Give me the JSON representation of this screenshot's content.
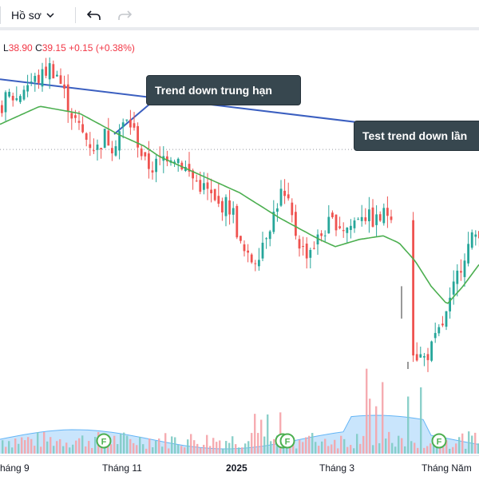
{
  "toolbar": {
    "profile_label": "Hồ sơ",
    "profile_chevron_icon": "chevron-down-icon",
    "undo_icon": "undo-icon",
    "redo_icon": "redo-icon"
  },
  "ohlc": {
    "low_label": "L",
    "low_value": "38.90",
    "close_label": "C",
    "close_value": "39.15",
    "change": "+0.15",
    "change_pct": "(+0.38%)"
  },
  "annotations": [
    {
      "text": "Trend down trung hạn"
    },
    {
      "text": "Test trend down lần"
    }
  ],
  "earnings_markers": [
    "F",
    "F",
    "F",
    "F"
  ],
  "xaxis_labels": [
    {
      "text": "háng 9",
      "bold": false
    },
    {
      "text": "Tháng 11",
      "bold": false
    },
    {
      "text": "2025",
      "bold": true
    },
    {
      "text": "Tháng 3",
      "bold": false
    },
    {
      "text": "Tháng Năm",
      "bold": false
    }
  ],
  "colors": {
    "up": "#26a69a",
    "down": "#ef5350",
    "ma": "#4caf50",
    "trendline": "#3b5fc0",
    "annotation_bg": "#37474f"
  },
  "chart_data": {
    "type": "line",
    "description_series": [
      {
        "name": "price",
        "x": [
          0,
          10,
          20,
          30,
          40,
          50,
          60,
          70,
          80,
          90,
          100,
          110,
          120,
          130,
          140,
          150,
          160,
          170,
          180,
          190,
          200,
          210,
          220,
          230,
          240,
          250,
          260,
          270,
          280,
          290,
          300,
          310,
          320,
          330,
          340,
          350,
          360,
          370,
          380,
          390,
          400,
          410,
          420,
          430,
          440,
          450,
          460,
          470,
          480,
          490,
          500,
          505,
          510,
          515,
          520,
          530,
          540,
          550,
          560,
          570,
          580,
          590,
          600
        ],
        "values": [
          41.2,
          41.5,
          41.4,
          41.8,
          41.9,
          42.0,
          42.3,
          42.1,
          41.5,
          40.9,
          40.5,
          40.2,
          40.0,
          40.4,
          40.1,
          40.6,
          40.8,
          40.3,
          39.6,
          39.5,
          39.7,
          39.9,
          39.8,
          39.5,
          39.2,
          39.0,
          38.8,
          38.4,
          38.5,
          38.3,
          37.3,
          36.9,
          37.0,
          37.6,
          38.1,
          38.8,
          38.4,
          37.6,
          37.1,
          37.3,
          37.6,
          37.9,
          38.0,
          37.8,
          37.9,
          38.3,
          38.1,
          38.0,
          38.2,
          38.3,
          37.4,
          36.0,
          35.0,
          34.5,
          34.3,
          34.2,
          34.5,
          35.0,
          35.5,
          36.4,
          37.1,
          37.5,
          37.8
        ]
      },
      {
        "name": "MA",
        "x": [
          0,
          50,
          100,
          150,
          180,
          200,
          250,
          300,
          350,
          400,
          420,
          450,
          480,
          500,
          520,
          540,
          560,
          580,
          600
        ],
        "values": [
          40.7,
          41.2,
          41.0,
          40.4,
          40.1,
          39.8,
          39.3,
          38.8,
          38.1,
          37.5,
          37.3,
          37.5,
          37.6,
          37.4,
          36.9,
          36.2,
          35.7,
          36.2,
          36.8
        ]
      }
    ],
    "trendline": {
      "x": [
        0,
        600
      ],
      "values": [
        41.95,
        40.35
      ]
    },
    "reference_level": 40.0,
    "ylim": [
      33.5,
      42.6
    ],
    "x_tick_labels": [
      "háng 9",
      "Tháng 11",
      "2025",
      "Tháng 3",
      "Tháng Năm"
    ],
    "grid": false
  }
}
